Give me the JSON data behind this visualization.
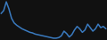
{
  "x": [
    0,
    1,
    2,
    3,
    4,
    5,
    6,
    7,
    8,
    9,
    10,
    11,
    12,
    13,
    14,
    15,
    16,
    17,
    18,
    19,
    20,
    21,
    22,
    23,
    24,
    25,
    26,
    27,
    28,
    29,
    30,
    31,
    32,
    33,
    34,
    35,
    36,
    37,
    38,
    39,
    40
  ],
  "y": [
    60,
    65,
    80,
    68,
    52,
    44,
    40,
    37,
    34,
    32,
    30,
    28,
    27,
    25,
    24,
    23,
    22,
    21,
    20,
    19,
    18,
    18,
    19,
    22,
    30,
    26,
    20,
    24,
    32,
    38,
    34,
    28,
    32,
    42,
    36,
    30,
    34,
    42,
    36,
    38,
    34
  ],
  "line_color": "#3a7abf",
  "background_color": "#111111",
  "linewidth": 1.1
}
